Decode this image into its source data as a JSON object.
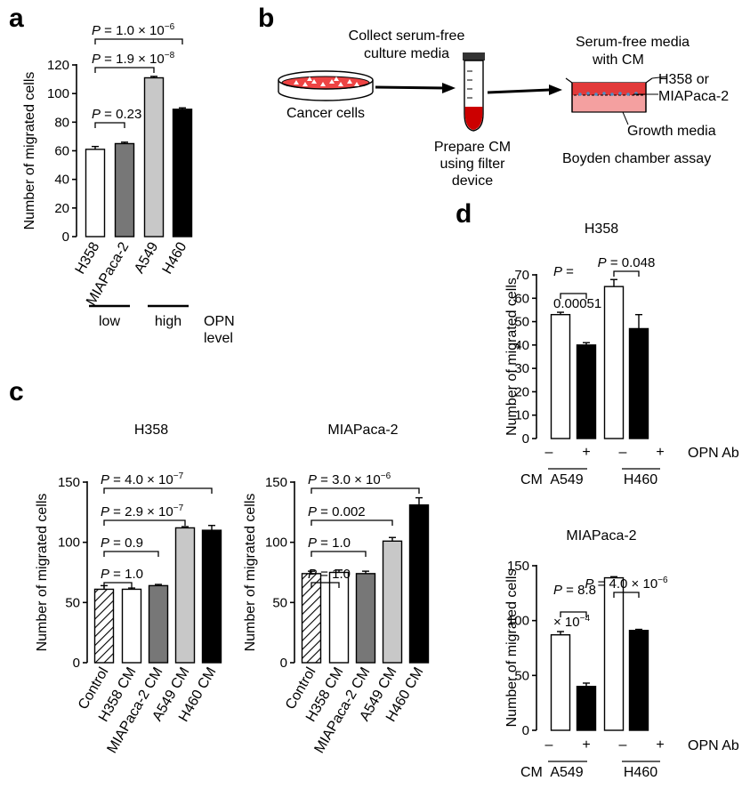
{
  "panel_labels": {
    "a": "a",
    "b": "b",
    "c": "c",
    "d": "d"
  },
  "diagram_b": {
    "left_label": "Cancer cells",
    "collect_label_1": "Collect serum-free",
    "collect_label_2": "culture media",
    "prepare_label_1": "Prepare CM",
    "prepare_label_2": "using filter",
    "prepare_label_3": "device",
    "right_label_1": "Serum-free media",
    "right_label_2": "with CM",
    "right_label_3": "H358 or",
    "right_label_4": "MIAPaca-2",
    "right_label_5": "Growth media",
    "right_label_6": "Boyden chamber assay",
    "colors": {
      "tube_fill": "#cc0000",
      "dish_fill": "#ee4444",
      "chamber_top": "#e23a3a",
      "chamber_bottom": "#f4a0a0"
    }
  },
  "panel_a_groups": {
    "low": "low",
    "high": "high",
    "opn_1": "OPN",
    "opn_2": "level"
  },
  "panel_d_labels": {
    "cm": "CM",
    "opn_ab": "OPN Ab",
    "group1": "A549",
    "group2": "H460",
    "minus": "–",
    "plus": "+"
  },
  "chart_data": [
    {
      "id": "a",
      "type": "bar",
      "ylabel": "Number of migrated cells",
      "ylim": [
        0,
        120
      ],
      "yticks": [
        0,
        20,
        40,
        60,
        80,
        100,
        120
      ],
      "categories": [
        "H358",
        "MIAPaca-2",
        "A549",
        "H460"
      ],
      "values": [
        61,
        65,
        111,
        89
      ],
      "errors": [
        2,
        1,
        1,
        1
      ],
      "fills": [
        "#ffffff",
        "#777777",
        "#c8c8c8",
        "#000000"
      ],
      "annotations": [
        {
          "i": 0,
          "j": 1,
          "text": "P = 0.23"
        },
        {
          "i": 0,
          "j": 2,
          "text": "P = 1.9 × 10^−8"
        },
        {
          "i": 0,
          "j": 3,
          "text": "P = 1.0 × 10^−6"
        }
      ]
    },
    {
      "id": "c1",
      "type": "bar",
      "title": "H358",
      "ylabel": "Number of migrated cells",
      "ylim": [
        0,
        150
      ],
      "yticks": [
        0,
        50,
        100,
        150
      ],
      "categories": [
        "Control",
        "H358 CM",
        "MIAPaca-2 CM",
        "A549 CM",
        "H460 CM"
      ],
      "values": [
        61,
        61,
        64,
        112,
        110
      ],
      "errors": [
        3,
        1,
        1,
        1,
        4
      ],
      "fills": [
        "hatch",
        "#ffffff",
        "#777777",
        "#c8c8c8",
        "#000000"
      ],
      "annotations": [
        {
          "i": 0,
          "j": 1,
          "text": "P = 1.0"
        },
        {
          "i": 0,
          "j": 2,
          "text": "P = 0.9"
        },
        {
          "i": 0,
          "j": 3,
          "text": "P = 2.9 × 10^−7"
        },
        {
          "i": 0,
          "j": 4,
          "text": "P = 4.0 × 10^−7"
        }
      ]
    },
    {
      "id": "c2",
      "type": "bar",
      "title": "MIAPaca-2",
      "ylabel": "Number of migrated cells",
      "ylim": [
        0,
        150
      ],
      "yticks": [
        0,
        50,
        100,
        150
      ],
      "categories": [
        "Control",
        "H358 CM",
        "MIAPaca-2 CM",
        "A549 CM",
        "H460 CM"
      ],
      "values": [
        74,
        75,
        74,
        101,
        131
      ],
      "errors": [
        2,
        2,
        2,
        3,
        6
      ],
      "fills": [
        "hatch",
        "#ffffff",
        "#777777",
        "#c8c8c8",
        "#000000"
      ],
      "annotations": [
        {
          "i": 0,
          "j": 1,
          "text": "P = 1.0"
        },
        {
          "i": 0,
          "j": 2,
          "text": "P = 1.0"
        },
        {
          "i": 0,
          "j": 3,
          "text": "P = 0.002"
        },
        {
          "i": 0,
          "j": 4,
          "text": "P = 3.0 × 10^−6"
        }
      ]
    },
    {
      "id": "d1",
      "type": "bar",
      "title": "H358",
      "ylabel": "Number of migrated cells",
      "ylim": [
        0,
        70
      ],
      "yticks": [
        0,
        10,
        20,
        30,
        40,
        50,
        60,
        70
      ],
      "categories": [
        "A549 –",
        "A549 +",
        "H460 –",
        "H460 +"
      ],
      "values": [
        53,
        40,
        65,
        47
      ],
      "errors": [
        1,
        1,
        3,
        6
      ],
      "fills": [
        "#ffffff",
        "#000000",
        "#ffffff",
        "#000000"
      ],
      "annotations": [
        {
          "i": 0,
          "j": 1,
          "text": "P =",
          "text2": "0.00051"
        },
        {
          "i": 2,
          "j": 3,
          "text": "P = 0.048"
        }
      ]
    },
    {
      "id": "d2",
      "type": "bar",
      "title": "MIAPaca-2",
      "ylabel": "Number of migrated cells",
      "ylim": [
        0,
        150
      ],
      "yticks": [
        0,
        50,
        100,
        150
      ],
      "categories": [
        "A549 –",
        "A549 +",
        "H460 –",
        "H460 +"
      ],
      "values": [
        87,
        40,
        139,
        91
      ],
      "errors": [
        3,
        3,
        1,
        1
      ],
      "fills": [
        "#ffffff",
        "#000000",
        "#ffffff",
        "#000000"
      ],
      "annotations": [
        {
          "i": 0,
          "j": 1,
          "text": "P = 8.8",
          "text2": "× 10^−4"
        },
        {
          "i": 2,
          "j": 3,
          "text": "P = 4.0 × 10^−6"
        }
      ]
    }
  ]
}
